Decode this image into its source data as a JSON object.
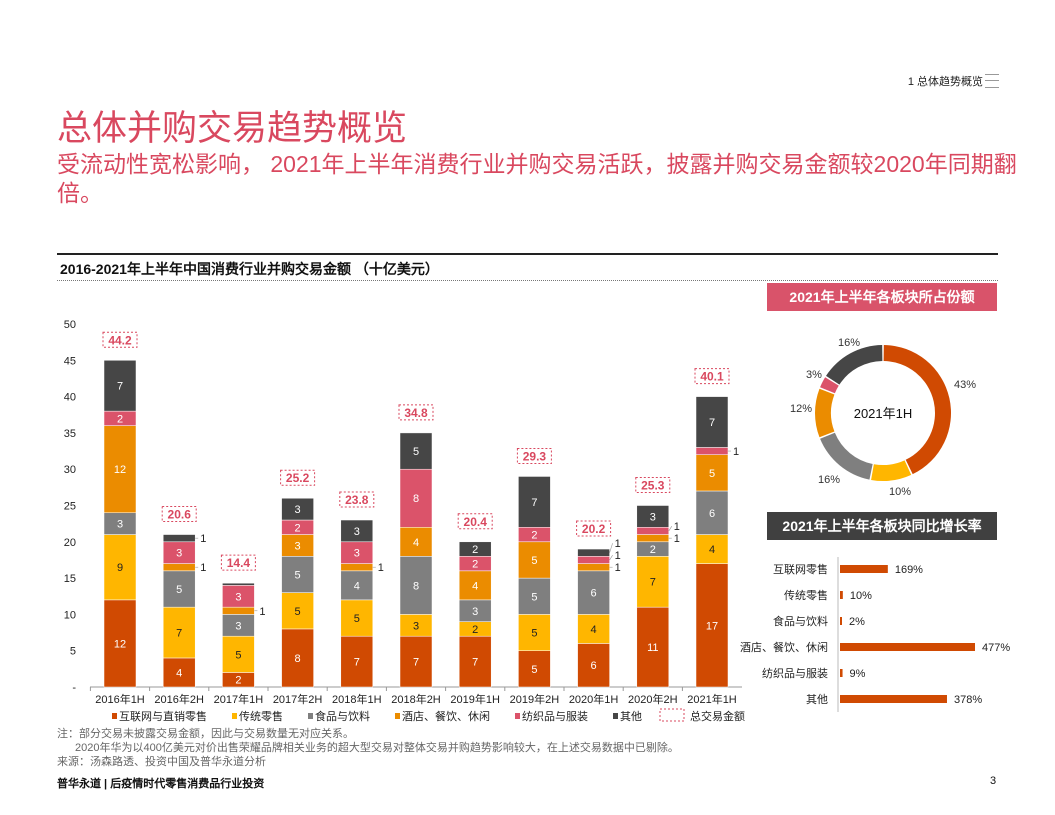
{
  "header": {
    "section": "1 总体趋势概览",
    "title": "总体并购交易趋势概览",
    "subtitle": "受流动性宽松影响， 2021年上半年消费行业并购交易活跃，披露并购交易金额较2020年同期翻倍。"
  },
  "colors": {
    "internet": "#D04A02",
    "traditional": "#FFB600",
    "food": "#7F7F7F",
    "hotel": "#EB8C00",
    "textile": "#DB536A",
    "other": "#464646",
    "total": "#D9485F"
  },
  "chart_data": [
    {
      "type": "bar",
      "title": "2016-2021年上半年中国消费行业并购交易金额 （十亿美元）",
      "ylim": [
        0,
        50
      ],
      "yticks": [
        "-",
        "5",
        "10",
        "15",
        "20",
        "25",
        "30",
        "35",
        "40",
        "45",
        "50"
      ],
      "categories": [
        "2016年1H",
        "2016年2H",
        "2017年1H",
        "2017年2H",
        "2018年1H",
        "2018年2H",
        "2019年1H",
        "2019年2H",
        "2020年1H",
        "2020年2H",
        "2021年1H"
      ],
      "series": [
        {
          "name": "互联网与直销零售",
          "key": "internet",
          "values": [
            12,
            4,
            2,
            8,
            7,
            7,
            7,
            5,
            6,
            11,
            17
          ]
        },
        {
          "name": "传统零售",
          "key": "traditional",
          "values": [
            9,
            7,
            5,
            5,
            5,
            3,
            2,
            5,
            4,
            7,
            4
          ]
        },
        {
          "name": "食品与饮料",
          "key": "food",
          "values": [
            3,
            5,
            3,
            5,
            4,
            8,
            3,
            5,
            6,
            2,
            6
          ]
        },
        {
          "name": "酒店、餐饮、休闲",
          "key": "hotel",
          "values": [
            12,
            1,
            1,
            3,
            1,
            4,
            4,
            5,
            1,
            1,
            5
          ]
        },
        {
          "name": "纺织品与服装",
          "key": "textile",
          "values": [
            2,
            3,
            3,
            2,
            3,
            8,
            2,
            2,
            1,
            1,
            1
          ]
        },
        {
          "name": "其他",
          "key": "other",
          "values": [
            7,
            1,
            0.3,
            3,
            3,
            5,
            2,
            7,
            1,
            3,
            7
          ]
        }
      ],
      "totals": {
        "name": "总交易金额",
        "values": [
          44.2,
          20.6,
          14.4,
          25.2,
          23.8,
          34.8,
          20.4,
          29.3,
          20.2,
          25.3,
          40.1
        ]
      }
    },
    {
      "type": "pie",
      "title": "2021年上半年各板块所占份额",
      "center_label": "2021年1H",
      "slices": [
        {
          "key": "internet",
          "value": 43,
          "label": "43%"
        },
        {
          "key": "traditional",
          "value": 10,
          "label": "10%"
        },
        {
          "key": "food",
          "value": 16,
          "label": "16%"
        },
        {
          "key": "hotel",
          "value": 12,
          "label": "12%"
        },
        {
          "key": "textile",
          "value": 3,
          "label": "3%"
        },
        {
          "key": "other",
          "value": 16,
          "label": "16%"
        }
      ]
    },
    {
      "type": "bar",
      "title": "2021年上半年各板块同比增长率",
      "categories": [
        "互联网零售",
        "传统零售",
        "食品与饮料",
        "酒店、餐饮、休闲",
        "纺织品与服装",
        "其他"
      ],
      "values": [
        169,
        10,
        2,
        477,
        9,
        378
      ],
      "labels": [
        "169%",
        "10%",
        "2%",
        "477%",
        "9%",
        "378%"
      ]
    }
  ],
  "notes": [
    "注：部分交易未披露交易金额，因此与交易数量无对应关系。",
    "2020年华为以400亿美元对价出售荣耀品牌相关业务的超大型交易对整体交易并购趋势影响较大，在上述交易数据中已剔除。",
    "来源：汤森路透、投资中国及普华永道分析"
  ],
  "footer": {
    "text": "普华永道 | 后疫情时代零售消费品行业投资",
    "page": "3"
  }
}
